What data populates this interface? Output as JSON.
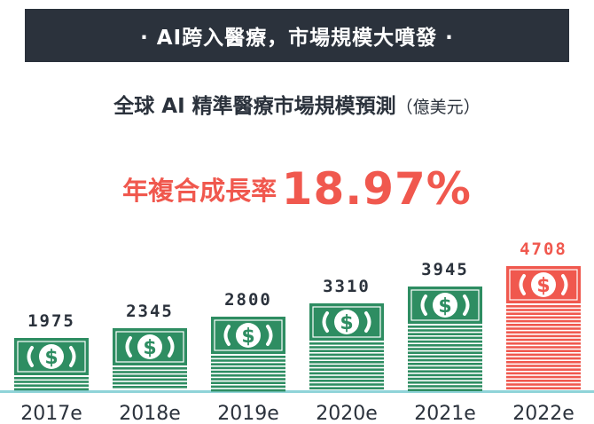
{
  "banner": {
    "text": "· AI跨入醫療，市場規模大噴發 ·"
  },
  "chart_data": {
    "type": "bar",
    "title": "全球 AI 精準醫療市場規模預測",
    "unit": "（億美元）",
    "cagr_label": "年複合成長率",
    "cagr_value": "18.97%",
    "categories": [
      "2017e",
      "2018e",
      "2019e",
      "2020e",
      "2021e",
      "2022e"
    ],
    "values": [
      1975,
      2345,
      2800,
      3310,
      3945,
      4708
    ],
    "ylim": [
      0,
      4708
    ],
    "grid": false,
    "icon": "dollar-banknote-stack-icon",
    "colors": {
      "normal": "#2e8d62",
      "highlight": "#f0584e",
      "axis": "#8fd3d8",
      "text": "#2b323c"
    }
  }
}
